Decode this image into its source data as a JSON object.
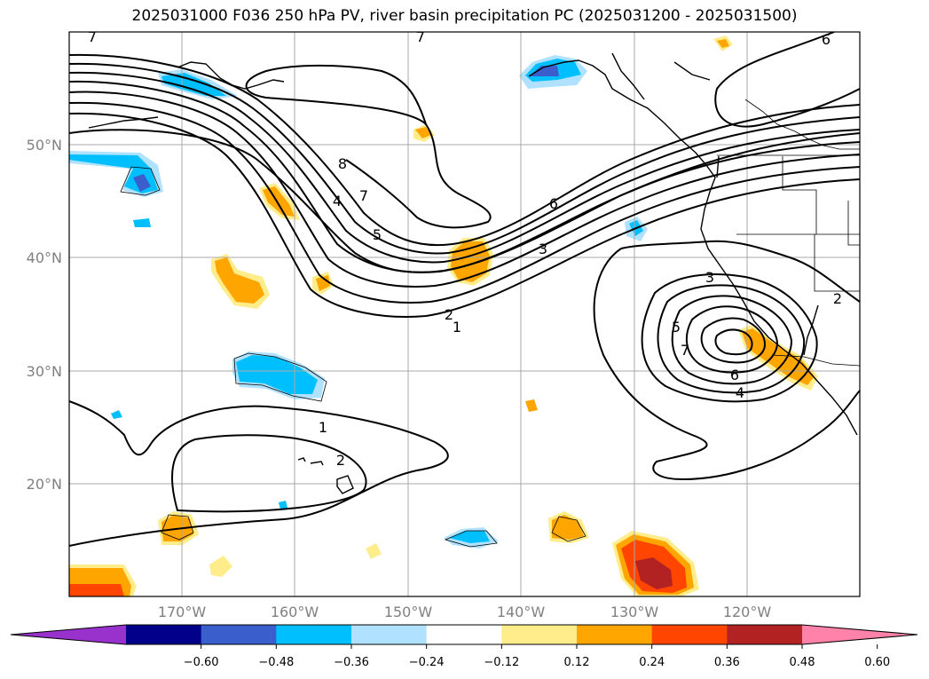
{
  "title": "2025031000 F036 250 hPa PV, river basin precipitation PC (2025031200 - 2025031500)",
  "lat_labels": [
    "50°N",
    "40°N",
    "30°N",
    "20°N"
  ],
  "lon_labels": [
    "170°W",
    "160°W",
    "150°W",
    "140°W",
    "130°W",
    "120°W"
  ],
  "colorbar": {
    "colors": [
      "#9932cc",
      "#00008b",
      "#3a5fcd",
      "#00bfff",
      "#b0e2ff",
      "#ffffff",
      "#ffec8b",
      "#ffa500",
      "#ff4500",
      "#b22222",
      "#ff82ab"
    ],
    "tick_labels": [
      "−0.60",
      "−0.48",
      "−0.36",
      "−0.24",
      "−0.12",
      "0.12",
      "0.24",
      "0.36",
      "0.48",
      "0.60"
    ]
  },
  "contour_labels": [
    "8",
    "7",
    "4",
    "5",
    "6",
    "3",
    "2",
    "1",
    "3",
    "5",
    "7",
    "6",
    "4",
    "2",
    "1",
    "2",
    "6",
    "7",
    "7"
  ]
}
